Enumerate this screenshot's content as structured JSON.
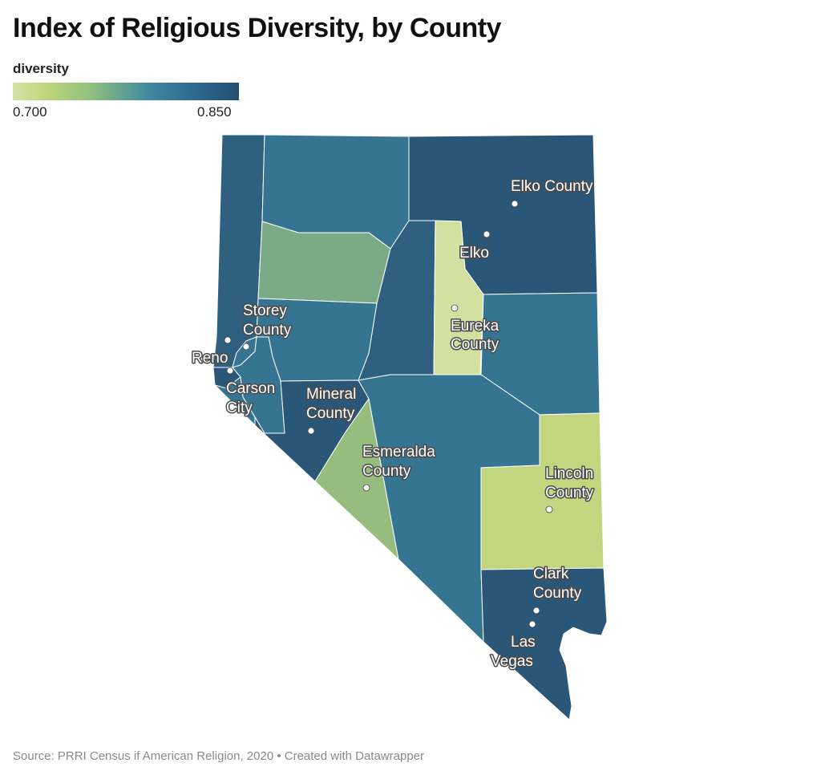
{
  "title": "Index of Religious Diversity, by County",
  "legend": {
    "title": "diversity",
    "min_label": "0.700",
    "max_label": "0.850",
    "range": [
      0.7,
      0.85
    ],
    "colors": [
      "#d4e3a6",
      "#bfd67a",
      "#8fbf7e",
      "#3f8aa0",
      "#2f6d92",
      "#234e74"
    ]
  },
  "colors": {
    "darkest": "#2a5677",
    "dark": "#2f6080",
    "mid": "#357591",
    "green_mid": "#7aab86",
    "green_light": "#97bd7e",
    "yellow_green": "#c2d57f",
    "pale": "#d2e1a0"
  },
  "labels": {
    "elko_county": "Elko County",
    "elko": "Elko",
    "storey_line1": "Storey",
    "storey_line2": "County",
    "reno": "Reno",
    "eureka_line1": "Eureka",
    "eureka_line2": "County",
    "carson_line1": "Carson",
    "carson_line2": "City",
    "mineral_line1": "Mineral",
    "mineral_line2": "County",
    "esmeralda_line1": "Esmeralda",
    "esmeralda_line2": "County",
    "lincoln_line1": "Lincoln",
    "lincoln_line2": "County",
    "clark_line1": "Clark",
    "clark_line2": "County",
    "lasvegas_line1": "Las",
    "lasvegas_line2": "Vegas"
  },
  "source": "Source: PRRI Census if American Religion, 2020 • Created with Datawrapper"
}
